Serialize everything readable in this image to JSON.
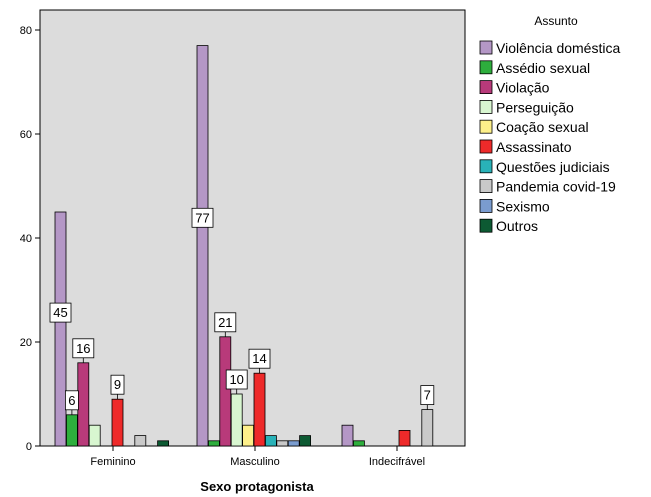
{
  "chart_data": {
    "type": "bar",
    "xlabel": "Sexo protagonista",
    "ylabel": "",
    "ylim": [
      0,
      80
    ],
    "yticks": [
      0,
      20,
      40,
      60,
      80
    ],
    "grid": false,
    "legend_position": "right",
    "legend_title": "Assunto",
    "categories": [
      "Feminino",
      "Masculino",
      "Indecifrável"
    ],
    "series": [
      {
        "name": "Violência doméstica",
        "color": "#b497c6",
        "values": [
          45,
          77,
          4
        ],
        "labels": [
          "45",
          "77",
          ""
        ]
      },
      {
        "name": "Assédio sexual",
        "color": "#2eae3d",
        "values": [
          6,
          1,
          1
        ],
        "labels": [
          "6",
          "",
          ""
        ]
      },
      {
        "name": "Violação",
        "color": "#b83a7a",
        "values": [
          16,
          21,
          0
        ],
        "labels": [
          "16",
          "21",
          ""
        ]
      },
      {
        "name": "Perseguição",
        "color": "#d8f6d0",
        "values": [
          4,
          10,
          0
        ],
        "labels": [
          "",
          "10",
          ""
        ]
      },
      {
        "name": "Coação sexual",
        "color": "#fdf08a",
        "values": [
          0,
          4,
          0
        ],
        "labels": [
          "",
          "",
          ""
        ]
      },
      {
        "name": "Assassinato",
        "color": "#ee2a2a",
        "values": [
          9,
          14,
          3
        ],
        "labels": [
          "9",
          "14",
          ""
        ]
      },
      {
        "name": "Questões judiciais",
        "color": "#29b2b8",
        "values": [
          0,
          2,
          0
        ],
        "labels": [
          "",
          "",
          ""
        ]
      },
      {
        "name": "Pandemia covid-19",
        "color": "#c9c9c9",
        "values": [
          2,
          1,
          7
        ],
        "labels": [
          "",
          "",
          "7"
        ]
      },
      {
        "name": "Sexismo",
        "color": "#7a9ccf",
        "values": [
          0,
          1,
          0
        ],
        "labels": [
          "",
          "",
          ""
        ]
      },
      {
        "name": "Outros",
        "color": "#0d5a33",
        "values": [
          1,
          2,
          0
        ],
        "labels": [
          "",
          "",
          ""
        ]
      }
    ],
    "plot_background": "#dcdcdc"
  }
}
